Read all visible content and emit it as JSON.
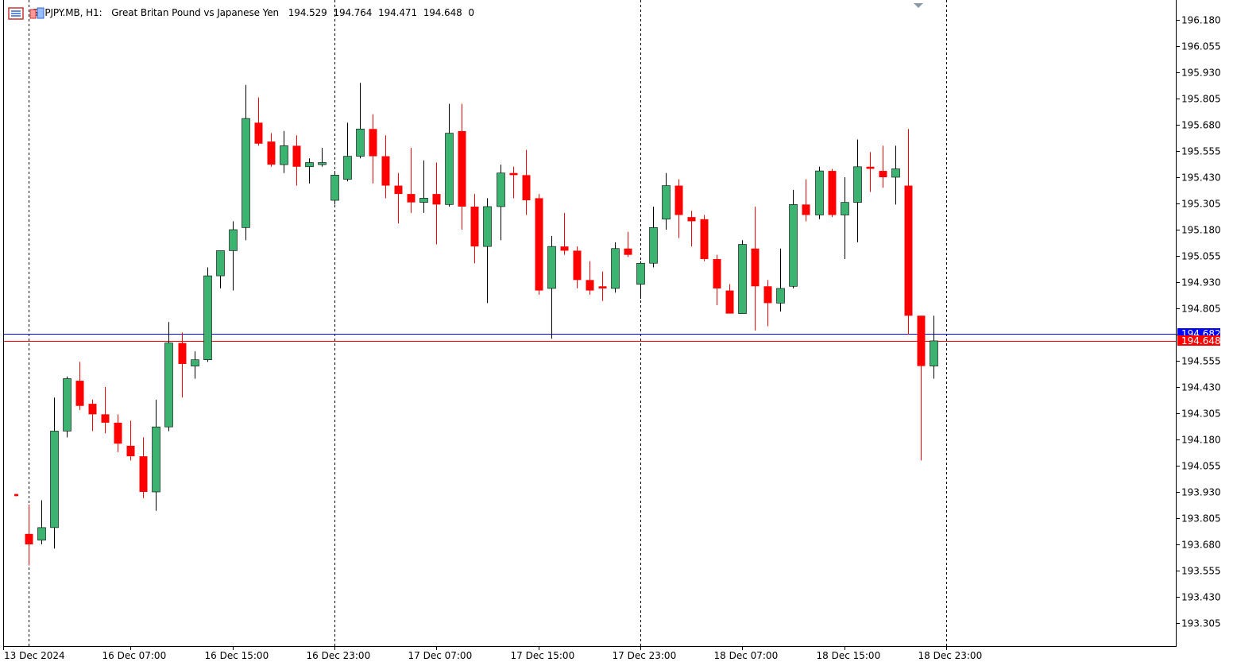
{
  "header": {
    "symbol": "GBPJPY.MB, H1:",
    "description": "Great Britan Pound vs Japanese Yen",
    "open": "194.529",
    "high": "194.764",
    "low": "194.471",
    "close": "194.648",
    "volume": "0",
    "icon_names": [
      "chart-menu-icon",
      "indicator-icon"
    ]
  },
  "colors": {
    "bull": "#3cb371",
    "bear": "#ff0000",
    "ask_line": "#0000ff",
    "bid_line": "#ff0000",
    "grid": "#000000",
    "background": "#ffffff"
  },
  "chart_data": {
    "type": "candlestick",
    "ylim": [
      193.2,
      196.25
    ],
    "y_ticks": [
      "196.180",
      "196.055",
      "195.930",
      "195.805",
      "195.680",
      "195.555",
      "195.430",
      "195.305",
      "195.180",
      "195.055",
      "194.930",
      "194.805",
      "194.680",
      "194.555",
      "194.430",
      "194.305",
      "194.180",
      "194.055",
      "193.930",
      "193.805",
      "193.680",
      "193.555",
      "193.430",
      "193.305"
    ],
    "x_ticks": [
      {
        "label": "13 Dec 2024",
        "bar": 0
      },
      {
        "label": "16 Dec 07:00",
        "bar": 9
      },
      {
        "label": "16 Dec 15:00",
        "bar": 17
      },
      {
        "label": "16 Dec 23:00",
        "bar": 25
      },
      {
        "label": "17 Dec 07:00",
        "bar": 33
      },
      {
        "label": "17 Dec 15:00",
        "bar": 41
      },
      {
        "label": "17 Dec 23:00",
        "bar": 49
      },
      {
        "label": "18 Dec 07:00",
        "bar": 57
      },
      {
        "label": "18 Dec 15:00",
        "bar": 65
      },
      {
        "label": "18 Dec 23:00",
        "bar": 73
      }
    ],
    "session_separators": [
      1,
      25,
      49,
      73
    ],
    "ask_price": "194.682",
    "bid_price": "194.648",
    "ask_value": 194.682,
    "bid_value": 194.648,
    "candles": [
      {
        "o": 193.92,
        "h": 193.92,
        "l": 193.91,
        "c": 193.91
      },
      {
        "o": 193.73,
        "h": 193.87,
        "l": 193.58,
        "c": 193.68
      },
      {
        "o": 193.7,
        "h": 193.89,
        "l": 193.68,
        "c": 193.76
      },
      {
        "o": 193.76,
        "h": 194.38,
        "l": 193.66,
        "c": 194.22
      },
      {
        "o": 194.22,
        "h": 194.48,
        "l": 194.19,
        "c": 194.47
      },
      {
        "o": 194.46,
        "h": 194.55,
        "l": 194.32,
        "c": 194.34
      },
      {
        "o": 194.35,
        "h": 194.37,
        "l": 194.22,
        "c": 194.3
      },
      {
        "o": 194.3,
        "h": 194.43,
        "l": 194.21,
        "c": 194.26
      },
      {
        "o": 194.26,
        "h": 194.3,
        "l": 194.12,
        "c": 194.16
      },
      {
        "o": 194.15,
        "h": 194.27,
        "l": 194.08,
        "c": 194.1
      },
      {
        "o": 194.1,
        "h": 194.19,
        "l": 193.9,
        "c": 193.93
      },
      {
        "o": 193.93,
        "h": 194.37,
        "l": 193.84,
        "c": 194.24
      },
      {
        "o": 194.24,
        "h": 194.74,
        "l": 194.22,
        "c": 194.64
      },
      {
        "o": 194.64,
        "h": 194.69,
        "l": 194.38,
        "c": 194.54
      },
      {
        "o": 194.53,
        "h": 194.6,
        "l": 194.47,
        "c": 194.56
      },
      {
        "o": 194.56,
        "h": 195.0,
        "l": 194.55,
        "c": 194.96
      },
      {
        "o": 194.96,
        "h": 195.08,
        "l": 194.9,
        "c": 195.08
      },
      {
        "o": 195.08,
        "h": 195.22,
        "l": 194.89,
        "c": 195.18
      },
      {
        "o": 195.19,
        "h": 195.87,
        "l": 195.13,
        "c": 195.71
      },
      {
        "o": 195.69,
        "h": 195.81,
        "l": 195.58,
        "c": 195.59
      },
      {
        "o": 195.6,
        "h": 195.64,
        "l": 195.48,
        "c": 195.49
      },
      {
        "o": 195.49,
        "h": 195.65,
        "l": 195.45,
        "c": 195.58
      },
      {
        "o": 195.58,
        "h": 195.63,
        "l": 195.39,
        "c": 195.48
      },
      {
        "o": 195.48,
        "h": 195.52,
        "l": 195.4,
        "c": 195.5
      },
      {
        "o": 195.49,
        "h": 195.57,
        "l": 195.48,
        "c": 195.5
      },
      {
        "o": 195.32,
        "h": 195.46,
        "l": 195.3,
        "c": 195.44
      },
      {
        "o": 195.42,
        "h": 195.69,
        "l": 195.41,
        "c": 195.53
      },
      {
        "o": 195.53,
        "h": 195.88,
        "l": 195.52,
        "c": 195.66
      },
      {
        "o": 195.66,
        "h": 195.73,
        "l": 195.4,
        "c": 195.53
      },
      {
        "o": 195.53,
        "h": 195.63,
        "l": 195.33,
        "c": 195.39
      },
      {
        "o": 195.39,
        "h": 195.45,
        "l": 195.21,
        "c": 195.35
      },
      {
        "o": 195.35,
        "h": 195.57,
        "l": 195.26,
        "c": 195.31
      },
      {
        "o": 195.31,
        "h": 195.51,
        "l": 195.26,
        "c": 195.33
      },
      {
        "o": 195.35,
        "h": 195.5,
        "l": 195.11,
        "c": 195.3
      },
      {
        "o": 195.3,
        "h": 195.78,
        "l": 195.29,
        "c": 195.64
      },
      {
        "o": 195.65,
        "h": 195.78,
        "l": 195.18,
        "c": 195.29
      },
      {
        "o": 195.29,
        "h": 195.35,
        "l": 195.02,
        "c": 195.1
      },
      {
        "o": 195.1,
        "h": 195.33,
        "l": 194.83,
        "c": 195.29
      },
      {
        "o": 195.29,
        "h": 195.49,
        "l": 195.13,
        "c": 195.45
      },
      {
        "o": 195.45,
        "h": 195.48,
        "l": 195.33,
        "c": 195.44
      },
      {
        "o": 195.44,
        "h": 195.56,
        "l": 195.25,
        "c": 195.32
      },
      {
        "o": 195.33,
        "h": 195.35,
        "l": 194.87,
        "c": 194.89
      },
      {
        "o": 194.9,
        "h": 195.15,
        "l": 194.66,
        "c": 195.1
      },
      {
        "o": 195.1,
        "h": 195.26,
        "l": 195.06,
        "c": 195.08
      },
      {
        "o": 195.08,
        "h": 195.1,
        "l": 194.9,
        "c": 194.94
      },
      {
        "o": 194.94,
        "h": 195.03,
        "l": 194.87,
        "c": 194.89
      },
      {
        "o": 194.91,
        "h": 194.98,
        "l": 194.84,
        "c": 194.9
      },
      {
        "o": 194.9,
        "h": 195.12,
        "l": 194.88,
        "c": 195.09
      },
      {
        "o": 195.09,
        "h": 195.17,
        "l": 195.05,
        "c": 195.06
      },
      {
        "o": 194.92,
        "h": 195.03,
        "l": 194.85,
        "c": 195.02
      },
      {
        "o": 195.02,
        "h": 195.29,
        "l": 195.0,
        "c": 195.19
      },
      {
        "o": 195.23,
        "h": 195.45,
        "l": 195.18,
        "c": 195.39
      },
      {
        "o": 195.39,
        "h": 195.42,
        "l": 195.14,
        "c": 195.25
      },
      {
        "o": 195.24,
        "h": 195.27,
        "l": 195.1,
        "c": 195.22
      },
      {
        "o": 195.23,
        "h": 195.25,
        "l": 195.03,
        "c": 195.04
      },
      {
        "o": 195.04,
        "h": 195.06,
        "l": 194.82,
        "c": 194.9
      },
      {
        "o": 194.89,
        "h": 194.92,
        "l": 194.79,
        "c": 194.78
      },
      {
        "o": 194.78,
        "h": 195.13,
        "l": 194.78,
        "c": 195.11
      },
      {
        "o": 195.09,
        "h": 195.29,
        "l": 194.7,
        "c": 194.91
      },
      {
        "o": 194.91,
        "h": 194.94,
        "l": 194.72,
        "c": 194.83
      },
      {
        "o": 194.83,
        "h": 195.09,
        "l": 194.79,
        "c": 194.9
      },
      {
        "o": 194.91,
        "h": 195.37,
        "l": 194.9,
        "c": 195.3
      },
      {
        "o": 195.3,
        "h": 195.42,
        "l": 195.22,
        "c": 195.25
      },
      {
        "o": 195.25,
        "h": 195.48,
        "l": 195.23,
        "c": 195.46
      },
      {
        "o": 195.46,
        "h": 195.47,
        "l": 195.24,
        "c": 195.25
      },
      {
        "o": 195.25,
        "h": 195.43,
        "l": 195.04,
        "c": 195.31
      },
      {
        "o": 195.31,
        "h": 195.61,
        "l": 195.12,
        "c": 195.48
      },
      {
        "o": 195.48,
        "h": 195.55,
        "l": 195.36,
        "c": 195.47
      },
      {
        "o": 195.46,
        "h": 195.58,
        "l": 195.38,
        "c": 195.43
      },
      {
        "o": 195.43,
        "h": 195.58,
        "l": 195.3,
        "c": 195.47
      },
      {
        "o": 195.39,
        "h": 195.66,
        "l": 194.68,
        "c": 194.77
      },
      {
        "o": 194.77,
        "h": 194.77,
        "l": 194.08,
        "c": 194.53
      },
      {
        "o": 194.53,
        "h": 194.77,
        "l": 194.47,
        "c": 194.65
      }
    ]
  }
}
